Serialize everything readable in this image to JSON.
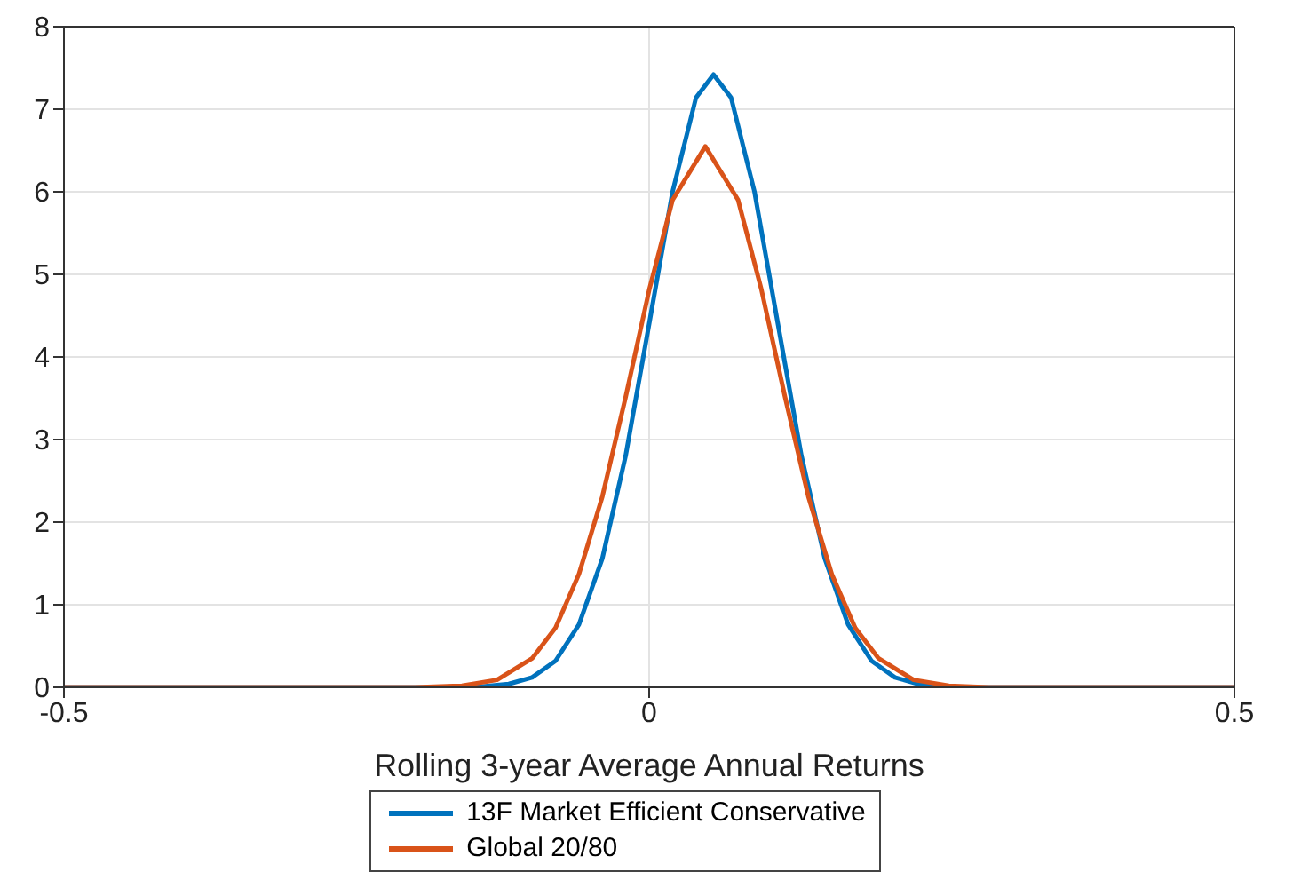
{
  "chart_data": {
    "type": "line",
    "xlabel": "Rolling 3-year Average Annual Returns",
    "series": [
      {
        "name": "13F Market Efficient Conservative",
        "color": "#0072bd",
        "x": [
          -0.5,
          -0.15,
          -0.12,
          -0.1,
          -0.08,
          -0.06,
          -0.04,
          -0.02,
          0,
          0.02,
          0.04,
          0.055,
          0.07,
          0.09,
          0.11,
          0.13,
          0.15,
          0.17,
          0.19,
          0.21,
          0.23,
          0.26,
          0.5
        ],
        "values": [
          0,
          0,
          0.04,
          0.12,
          0.32,
          0.76,
          1.56,
          2.81,
          4.4,
          6.0,
          7.14,
          7.42,
          7.14,
          6.0,
          4.4,
          2.81,
          1.56,
          0.76,
          0.32,
          0.12,
          0.04,
          0,
          0
        ]
      },
      {
        "name": "Global 20/80",
        "color": "#d95319",
        "x": [
          -0.5,
          -0.2,
          -0.16,
          -0.13,
          -0.1,
          -0.08,
          -0.06,
          -0.04,
          -0.02,
          0,
          0.02,
          0.048,
          0.076,
          0.096,
          0.116,
          0.136,
          0.156,
          0.176,
          0.196,
          0.226,
          0.256,
          0.29,
          0.5
        ],
        "values": [
          0,
          0,
          0.02,
          0.09,
          0.35,
          0.72,
          1.37,
          2.31,
          3.52,
          4.81,
          5.9,
          6.55,
          5.9,
          4.81,
          3.52,
          2.31,
          1.37,
          0.72,
          0.35,
          0.09,
          0.02,
          0,
          0
        ]
      }
    ],
    "xlim": [
      -0.5,
      0.5
    ],
    "xticks": [
      -0.5,
      0,
      0.5
    ],
    "ylim": [
      0,
      8
    ],
    "yticks": [
      0,
      1,
      2,
      3,
      4,
      5,
      6,
      7,
      8
    ],
    "grid": true,
    "legend": "bottom",
    "marker": "none",
    "line_style": "solid"
  }
}
